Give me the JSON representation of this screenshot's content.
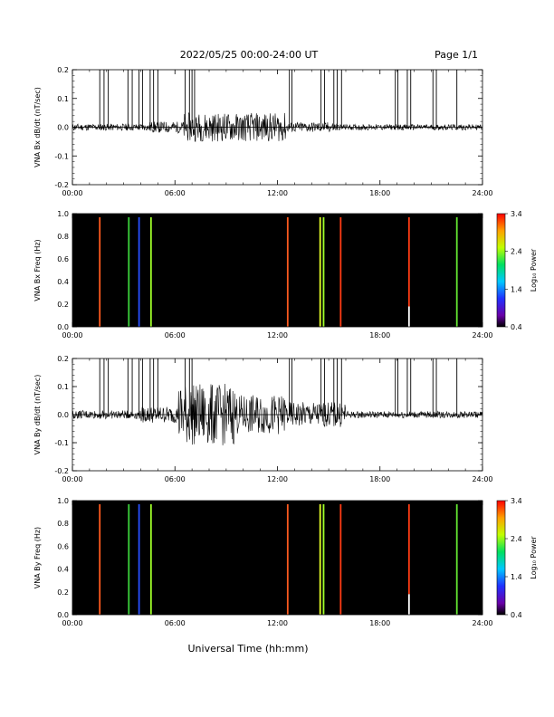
{
  "header": {
    "title": "2022/05/25  00:00-24:00 UT",
    "page": "Page 1/1"
  },
  "footer": {
    "xlabel": "Universal Time (hh:mm)"
  },
  "chart_data": [
    {
      "type": "line",
      "ylabel": "VNA Bx dB/dt (nT/sec)",
      "xlim": [
        0,
        24
      ],
      "ylim": [
        -0.2,
        0.2
      ],
      "x_ticks": [
        "00:00",
        "06:00",
        "12:00",
        "18:00",
        "24:00"
      ],
      "y_ticks": [
        "0.2",
        "0.1",
        "0.0",
        "-0.1",
        "-0.2"
      ],
      "spike_times_h": [
        1.6,
        1.85,
        2.1,
        3.25,
        3.5,
        3.9,
        4.1,
        4.55,
        4.75,
        5.0,
        6.6,
        6.85,
        7.0,
        7.15,
        12.7,
        12.85,
        14.55,
        14.75,
        15.3,
        15.5,
        15.75,
        18.9,
        19.05,
        19.6,
        19.8,
        21.1,
        21.3,
        22.5
      ],
      "noise": [
        {
          "from_h": 0,
          "to_h": 4.5,
          "amp": 0.012
        },
        {
          "from_h": 4.5,
          "to_h": 6.5,
          "amp": 0.02
        },
        {
          "from_h": 6.5,
          "to_h": 12.5,
          "amp": 0.05
        },
        {
          "from_h": 12.5,
          "to_h": 15.5,
          "amp": 0.018
        },
        {
          "from_h": 15.5,
          "to_h": 24,
          "amp": 0.01
        }
      ]
    },
    {
      "type": "heatmap",
      "ylabel": "VNA Bx Freq (Hz)",
      "xlim": [
        0,
        24
      ],
      "ylim": [
        0,
        1.0
      ],
      "x_ticks": [
        "00:00",
        "06:00",
        "12:00",
        "18:00",
        "24:00"
      ],
      "y_ticks": [
        "1.0",
        "0.8",
        "0.6",
        "0.4",
        "0.2",
        "0.0"
      ],
      "background": "#000000",
      "lines": [
        {
          "t_h": 1.6,
          "color": "#ff5a1e"
        },
        {
          "t_h": 3.3,
          "color": "#3cd23c"
        },
        {
          "t_h": 3.9,
          "color": "#2850ff"
        },
        {
          "t_h": 4.6,
          "color": "#a0ff2a"
        },
        {
          "t_h": 12.6,
          "color": "#ff5a1e"
        },
        {
          "t_h": 14.5,
          "color": "#e6ff28"
        },
        {
          "t_h": 14.7,
          "color": "#a0ff2a"
        },
        {
          "t_h": 15.7,
          "color": "#ff3c14"
        },
        {
          "t_h": 19.7,
          "color": "#ff3c14",
          "white_below": 0.18
        },
        {
          "t_h": 22.5,
          "color": "#64e632"
        }
      ],
      "colorbar": {
        "label": "Log₁₀ Power",
        "ticks": [
          "3.4",
          "2.4",
          "1.4",
          "0.4"
        ],
        "range": [
          0.4,
          3.4
        ]
      }
    },
    {
      "type": "line",
      "ylabel": "VNA By dB/dt (nT/sec)",
      "xlim": [
        0,
        24
      ],
      "ylim": [
        -0.2,
        0.2
      ],
      "x_ticks": [
        "00:00",
        "06:00",
        "12:00",
        "18:00",
        "24:00"
      ],
      "y_ticks": [
        "0.2",
        "0.1",
        "0.0",
        "-0.1",
        "-0.2"
      ],
      "spike_times_h": [
        1.6,
        1.85,
        2.1,
        3.25,
        3.5,
        3.9,
        4.1,
        4.55,
        4.75,
        5.0,
        6.6,
        6.85,
        7.0,
        12.7,
        12.85,
        14.55,
        14.75,
        15.3,
        15.5,
        15.75,
        18.9,
        19.05,
        19.6,
        19.8,
        21.1,
        21.3,
        22.5
      ],
      "noise": [
        {
          "from_h": 0,
          "to_h": 4.0,
          "amp": 0.015
        },
        {
          "from_h": 4.0,
          "to_h": 6.2,
          "amp": 0.03
        },
        {
          "from_h": 6.2,
          "to_h": 9.5,
          "amp": 0.11
        },
        {
          "from_h": 9.5,
          "to_h": 12.5,
          "amp": 0.07
        },
        {
          "from_h": 12.5,
          "to_h": 16.0,
          "amp": 0.045
        },
        {
          "from_h": 16.0,
          "to_h": 24,
          "amp": 0.012
        }
      ]
    },
    {
      "type": "heatmap",
      "ylabel": "VNA By Freq (Hz)",
      "xlim": [
        0,
        24
      ],
      "ylim": [
        0,
        1.0
      ],
      "x_ticks": [
        "00:00",
        "06:00",
        "12:00",
        "18:00",
        "24:00"
      ],
      "y_ticks": [
        "1.0",
        "0.8",
        "0.6",
        "0.4",
        "0.2",
        "0.0"
      ],
      "background": "#000000",
      "lines": [
        {
          "t_h": 1.6,
          "color": "#ff5a1e"
        },
        {
          "t_h": 3.3,
          "color": "#3cd23c"
        },
        {
          "t_h": 3.9,
          "color": "#2850ff"
        },
        {
          "t_h": 4.6,
          "color": "#a0ff2a"
        },
        {
          "t_h": 12.6,
          "color": "#ff5a1e"
        },
        {
          "t_h": 14.5,
          "color": "#e6ff28"
        },
        {
          "t_h": 14.7,
          "color": "#a0ff2a"
        },
        {
          "t_h": 15.7,
          "color": "#ff3c14"
        },
        {
          "t_h": 19.7,
          "color": "#ff3c14",
          "white_below": 0.18
        },
        {
          "t_h": 22.5,
          "color": "#64e632"
        }
      ],
      "colorbar": {
        "label": "Log₁₀ Power",
        "ticks": [
          "3.4",
          "2.4",
          "1.4",
          "0.4"
        ],
        "range": [
          0.4,
          3.4
        ]
      }
    }
  ]
}
